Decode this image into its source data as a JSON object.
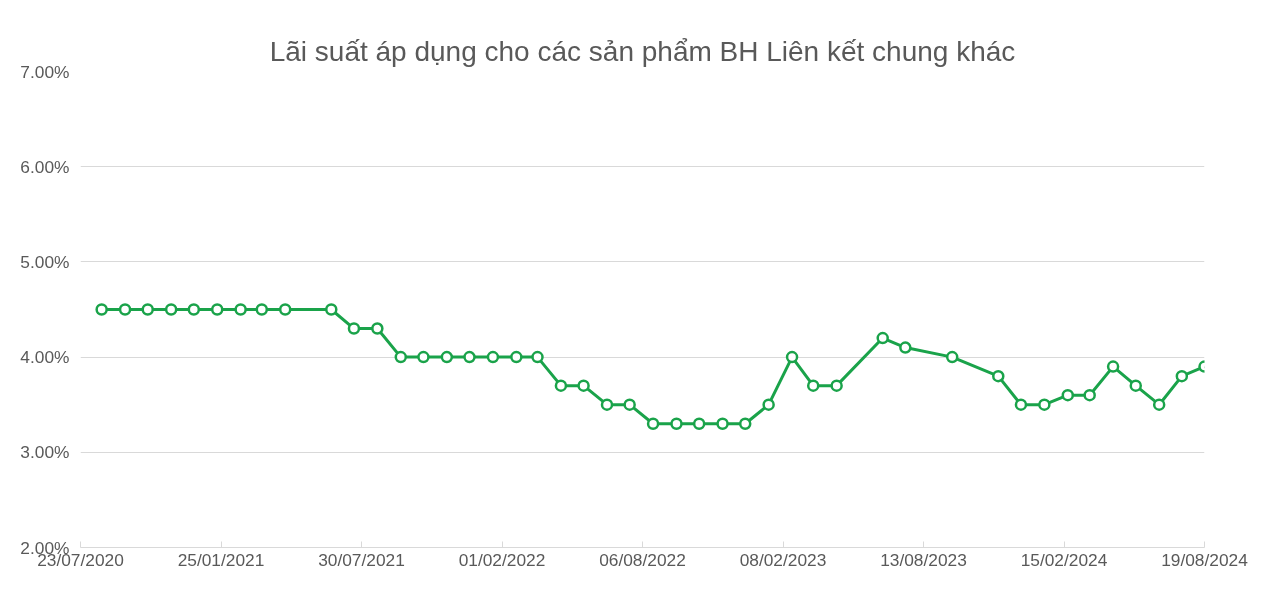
{
  "chart_data": {
    "type": "line",
    "title": "Lãi suất áp dụng cho các sản phẩm BH Liên kết chung khác",
    "x": [
      "2020-08-20",
      "2020-09-20",
      "2020-10-20",
      "2020-11-20",
      "2020-12-20",
      "2021-01-20",
      "2021-02-20",
      "2021-03-20",
      "2021-04-20",
      "2021-06-20",
      "2021-07-20",
      "2021-08-20",
      "2021-09-20",
      "2021-10-20",
      "2021-11-20",
      "2021-12-20",
      "2022-01-20",
      "2022-02-20",
      "2022-03-20",
      "2022-04-20",
      "2022-05-20",
      "2022-06-20",
      "2022-07-20",
      "2022-08-20",
      "2022-09-20",
      "2022-10-20",
      "2022-11-20",
      "2022-12-20",
      "2023-01-20",
      "2023-02-20",
      "2023-03-20",
      "2023-04-20",
      "2023-06-20",
      "2023-07-20",
      "2023-09-20",
      "2023-11-20",
      "2023-12-20",
      "2024-01-20",
      "2024-02-20",
      "2024-03-20",
      "2024-04-20",
      "2024-05-20",
      "2024-06-20",
      "2024-07-20",
      "2024-08-19"
    ],
    "series": [
      {
        "color": "#1aa34a",
        "values": [
          4.5,
          4.5,
          4.5,
          4.5,
          4.5,
          4.5,
          4.5,
          4.5,
          4.5,
          4.5,
          4.3,
          4.3,
          4.0,
          4.0,
          4.0,
          4.0,
          4.0,
          4.0,
          4.0,
          3.7,
          3.7,
          3.5,
          3.5,
          3.3,
          3.3,
          3.3,
          3.3,
          3.3,
          3.5,
          4.0,
          3.7,
          3.7,
          4.2,
          4.1,
          4.0,
          3.8,
          3.5,
          3.5,
          3.6,
          3.6,
          3.9,
          3.7,
          3.5,
          3.8,
          3.9
        ]
      }
    ],
    "xlim": [
      "2020-07-23",
      "2024-08-19"
    ],
    "xticks": [
      {
        "value": "2020-07-23",
        "label": "23/07/2020"
      },
      {
        "value": "2021-01-25",
        "label": "25/01/2021"
      },
      {
        "value": "2021-07-30",
        "label": "30/07/2021"
      },
      {
        "value": "2022-02-01",
        "label": "01/02/2022"
      },
      {
        "value": "2022-08-06",
        "label": "06/08/2022"
      },
      {
        "value": "2023-02-08",
        "label": "08/02/2023"
      },
      {
        "value": "2023-08-13",
        "label": "13/08/2023"
      },
      {
        "value": "2024-02-15",
        "label": "15/02/2024"
      },
      {
        "value": "2024-08-19",
        "label": "19/08/2024"
      }
    ],
    "ylim": [
      2,
      7
    ],
    "yticks": [
      {
        "value": 2,
        "label": "2.00%"
      },
      {
        "value": 3,
        "label": "3.00%"
      },
      {
        "value": 4,
        "label": "4.00%"
      },
      {
        "value": 5,
        "label": "5.00%"
      },
      {
        "value": 6,
        "label": "6.00%"
      },
      {
        "value": 7,
        "label": "7.00%"
      }
    ],
    "grid": "y",
    "marker": "circle",
    "line_style": "solid"
  }
}
